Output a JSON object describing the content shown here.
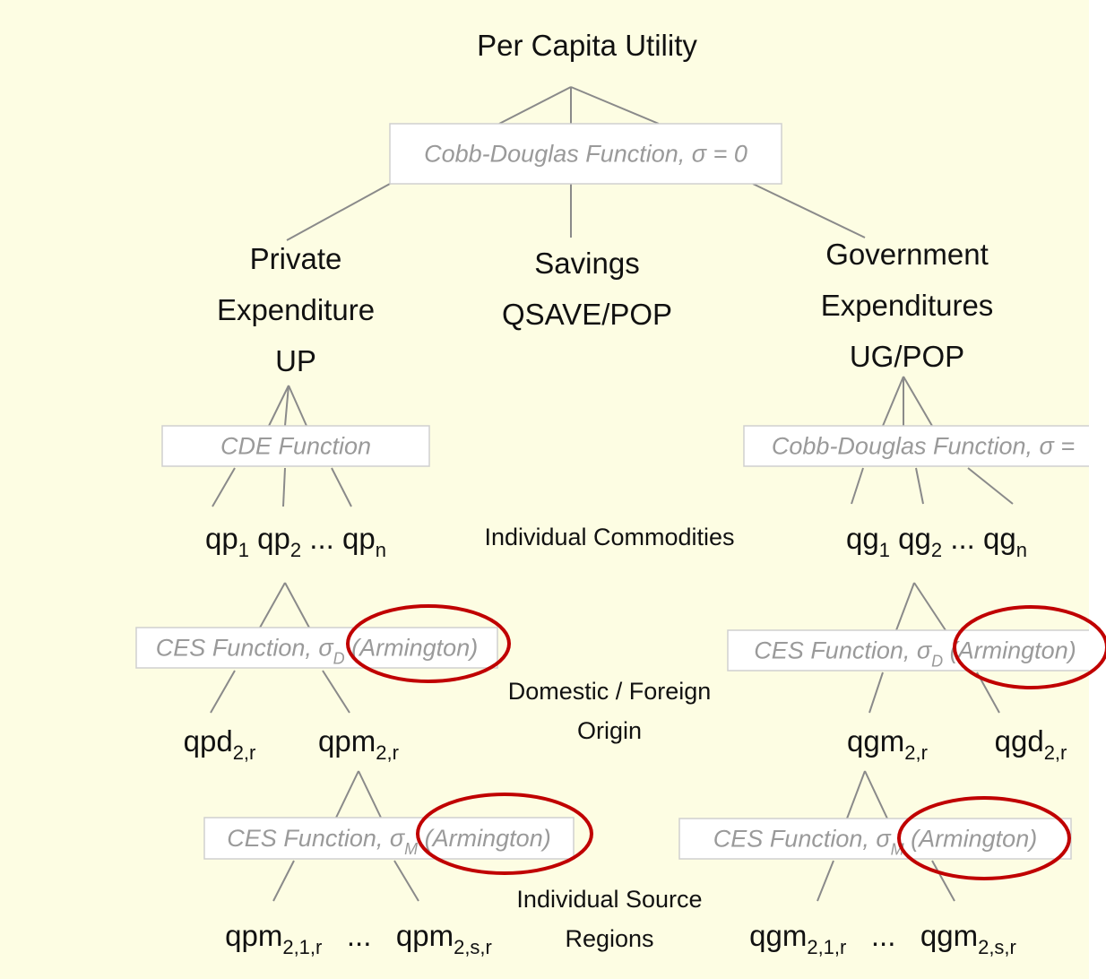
{
  "title": "Per Capita Utility",
  "functions": [
    {
      "parts": [
        {
          "text": "Cobb-Douglas Function, σ = 0"
        }
      ]
    },
    {
      "parts": [
        {
          "text": "CDE Function"
        }
      ]
    },
    {
      "parts": [
        {
          "text": "Cobb-Douglas Function, σ ="
        }
      ]
    },
    {
      "parts": [
        {
          "text": "CES Function, σ"
        },
        {
          "sub": "D"
        },
        {
          "text": " (Armington)"
        }
      ]
    },
    {
      "parts": [
        {
          "text": "CES Function, σ"
        },
        {
          "sub": "D"
        },
        {
          "text": " (Armington)"
        }
      ]
    },
    {
      "parts": [
        {
          "text": "CES Function, σ"
        },
        {
          "sub": "M"
        },
        {
          "text": " (Armington)"
        }
      ]
    },
    {
      "parts": [
        {
          "text": "CES Function, σ"
        },
        {
          "sub": "M"
        },
        {
          "text": " (Armington)"
        }
      ]
    }
  ],
  "nodes": [
    {
      "lines": [
        [
          {
            "text": "Private"
          }
        ],
        [
          {
            "text": "Expenditure"
          }
        ],
        [
          {
            "text": "UP"
          }
        ]
      ]
    },
    {
      "lines": [
        [
          {
            "text": "Savings"
          }
        ],
        [
          {
            "text": "QSAVE/POP"
          }
        ]
      ]
    },
    {
      "lines": [
        [
          {
            "text": "Government"
          }
        ],
        [
          {
            "text": "Expenditures"
          }
        ],
        [
          {
            "text": "UG/POP"
          }
        ]
      ]
    },
    {
      "lines": [
        [
          {
            "text": "qp"
          },
          {
            "sub": "1"
          },
          {
            "text": " qp"
          },
          {
            "sub": "2"
          },
          {
            "text": " ... qp"
          },
          {
            "sub": "n"
          }
        ]
      ]
    },
    {
      "lines": [
        [
          {
            "text": "qg"
          },
          {
            "sub": "1"
          },
          {
            "text": " qg"
          },
          {
            "sub": "2"
          },
          {
            "text": " ... qg"
          },
          {
            "sub": "n"
          }
        ]
      ]
    },
    {
      "lines": [
        [
          {
            "text": "qpd"
          },
          {
            "sub": "2,r"
          }
        ]
      ]
    },
    {
      "lines": [
        [
          {
            "text": "qpm"
          },
          {
            "sub": "2,r"
          }
        ]
      ]
    },
    {
      "lines": [
        [
          {
            "text": "qgm"
          },
          {
            "sub": "2,r"
          }
        ]
      ]
    },
    {
      "lines": [
        [
          {
            "text": "qgd"
          },
          {
            "sub": "2,r"
          }
        ]
      ]
    },
    {
      "lines": [
        [
          {
            "text": "qpm"
          },
          {
            "sub": "2,1,r"
          },
          {
            "text": "   ...   qpm"
          },
          {
            "sub": "2,s,r"
          }
        ]
      ]
    },
    {
      "lines": [
        [
          {
            "text": "qgm"
          },
          {
            "sub": "2,1,r"
          },
          {
            "text": "   ...   qgm"
          },
          {
            "sub": "2,s,r"
          }
        ]
      ]
    }
  ],
  "levels": [
    {
      "lines": [
        "Individual Commodities"
      ]
    },
    {
      "lines": [
        "Domestic / Foreign",
        "Origin"
      ]
    },
    {
      "lines": [
        "Individual Source",
        "Regions"
      ]
    }
  ]
}
